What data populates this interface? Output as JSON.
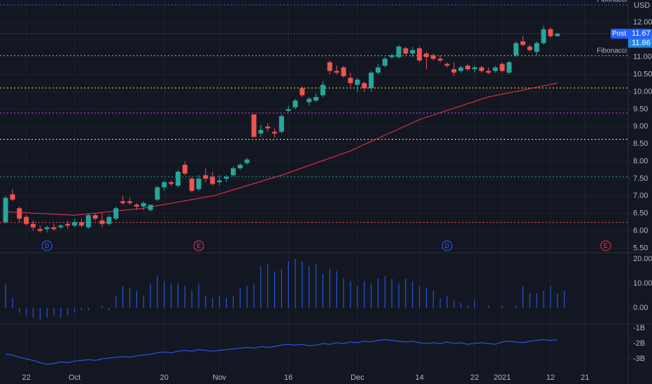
{
  "chart_data": [
    {
      "type": "candlestick",
      "currency": "USD",
      "categories": [
        null,
        null,
        null,
        "22",
        null,
        null,
        null,
        null,
        null,
        null,
        "Oct",
        null,
        null,
        null,
        null,
        null,
        null,
        null,
        null,
        null,
        null,
        null,
        null,
        "20",
        null,
        null,
        null,
        null,
        null,
        null,
        null,
        "Nov",
        null,
        null,
        null,
        null,
        null,
        null,
        null,
        null,
        null,
        "16",
        null,
        null,
        null,
        null,
        null,
        null,
        null,
        null,
        null,
        "Dec",
        null,
        null,
        null,
        null,
        null,
        null,
        null,
        null,
        "14",
        null,
        null,
        null,
        null,
        null,
        null,
        null,
        "22",
        null,
        null,
        null,
        "2021",
        null,
        null,
        null,
        null,
        null,
        null,
        "12",
        null,
        null,
        null,
        null,
        "21",
        null,
        null,
        null
      ],
      "open": [
        6.25,
        7.05,
        6.65,
        6.4,
        6.2,
        6.05,
        6.05,
        6.1,
        6.1,
        6.2,
        6.15,
        6.25,
        6.1,
        6.45,
        6.3,
        6.2,
        6.35,
        6.85,
        6.85,
        6.75,
        6.7,
        6.6,
        6.9,
        7.25,
        7.4,
        7.3,
        7.9,
        7.5,
        7.2,
        7.6,
        7.55,
        7.4,
        7.5,
        7.6,
        7.8,
        7.95,
        9.35,
        8.8,
        9.0,
        8.85,
        8.85,
        9.45,
        9.55,
        10.1,
        9.7,
        9.75,
        9.9,
        10.85,
        10.6,
        10.7,
        10.4,
        10.2,
        10.25,
        10.1,
        10.55,
        10.75,
        11.0,
        11.0,
        11.25,
        11.1,
        11.25,
        11.1,
        11.05,
        10.95,
        10.8,
        10.65,
        10.6,
        10.75,
        10.65,
        10.7,
        10.6,
        10.6,
        10.8,
        10.55,
        11.05,
        11.45,
        11.3,
        11.15,
        11.4,
        11.8,
        11.6,
        null,
        null,
        null,
        null,
        null,
        null,
        null
      ],
      "high": [
        7.0,
        7.2,
        6.7,
        6.45,
        6.3,
        6.15,
        6.15,
        6.2,
        6.2,
        6.3,
        6.35,
        6.35,
        6.5,
        6.5,
        6.5,
        6.45,
        6.7,
        7.0,
        6.95,
        6.8,
        6.85,
        6.75,
        7.3,
        7.45,
        7.45,
        7.75,
        8.0,
        7.55,
        7.6,
        7.8,
        7.7,
        7.6,
        7.6,
        7.85,
        7.95,
        8.1,
        9.35,
        9.05,
        9.1,
        8.95,
        9.35,
        9.6,
        9.8,
        10.15,
        9.85,
        9.95,
        10.3,
        10.9,
        10.75,
        10.75,
        10.55,
        10.4,
        10.3,
        10.6,
        10.8,
        11.0,
        11.1,
        11.35,
        11.3,
        11.3,
        11.3,
        11.15,
        11.1,
        11.05,
        10.85,
        10.85,
        10.75,
        10.8,
        10.75,
        10.75,
        10.7,
        10.75,
        10.85,
        10.9,
        11.45,
        11.6,
        11.35,
        11.45,
        11.9,
        11.85,
        11.7,
        null,
        null,
        null,
        null,
        null,
        null,
        null
      ],
      "low": [
        6.2,
        6.85,
        6.25,
        6.15,
        6.0,
        5.95,
        5.95,
        6.0,
        6.05,
        6.05,
        6.1,
        6.1,
        6.05,
        6.3,
        6.1,
        6.15,
        6.3,
        6.75,
        6.75,
        6.6,
        6.6,
        6.55,
        6.85,
        7.15,
        7.3,
        7.25,
        7.6,
        7.1,
        7.15,
        7.4,
        7.3,
        7.3,
        7.4,
        7.55,
        7.75,
        7.9,
        8.7,
        8.7,
        8.85,
        8.7,
        8.8,
        9.4,
        9.5,
        9.85,
        9.6,
        9.7,
        9.85,
        10.5,
        10.5,
        10.4,
        10.15,
        10.0,
        10.0,
        10.0,
        10.5,
        10.7,
        10.95,
        10.95,
        11.05,
        11.0,
        10.85,
        10.65,
        10.9,
        10.85,
        10.7,
        10.45,
        10.55,
        10.6,
        10.55,
        10.55,
        10.5,
        10.55,
        10.55,
        10.5,
        11.0,
        11.3,
        11.15,
        11.05,
        11.35,
        11.55,
        11.6,
        null,
        null,
        null,
        null,
        null,
        null,
        null
      ],
      "close": [
        6.95,
        6.9,
        6.35,
        6.2,
        6.1,
        6.0,
        6.1,
        6.05,
        6.15,
        6.15,
        6.25,
        6.15,
        6.45,
        6.35,
        6.2,
        6.4,
        6.65,
        6.8,
        6.8,
        6.7,
        6.8,
        6.75,
        7.25,
        7.4,
        7.35,
        7.7,
        7.65,
        7.15,
        7.5,
        7.5,
        7.35,
        7.45,
        7.55,
        7.8,
        7.9,
        8.05,
        8.7,
        8.9,
        8.95,
        8.8,
        9.3,
        9.5,
        9.75,
        9.9,
        9.8,
        9.85,
        10.2,
        10.6,
        10.55,
        10.45,
        10.25,
        10.35,
        10.1,
        10.55,
        10.7,
        10.95,
        11.05,
        11.3,
        11.1,
        11.2,
        10.9,
        11.0,
        10.95,
        10.9,
        10.75,
        10.55,
        10.7,
        10.65,
        10.7,
        10.6,
        10.55,
        10.7,
        10.6,
        10.85,
        11.4,
        11.35,
        11.2,
        11.4,
        11.8,
        11.6,
        11.67,
        null,
        null,
        null,
        null,
        null,
        null,
        null
      ],
      "up_color": "#26a69a",
      "down_color": "#ef5350",
      "overlay": {
        "color": "#f23645",
        "values": [
          6.55,
          6.54,
          6.53,
          6.52,
          6.51,
          6.5,
          6.49,
          6.48,
          6.47,
          6.46,
          6.45,
          6.47,
          6.49,
          6.51,
          6.53,
          6.55,
          6.57,
          6.59,
          6.61,
          6.63,
          6.65,
          6.69,
          6.72,
          6.76,
          6.79,
          6.83,
          6.86,
          6.9,
          6.93,
          6.97,
          7.0,
          7.06,
          7.12,
          7.18,
          7.24,
          7.3,
          7.36,
          7.42,
          7.48,
          7.54,
          7.6,
          7.67,
          7.74,
          7.81,
          7.88,
          7.95,
          8.02,
          8.09,
          8.16,
          8.23,
          8.3,
          8.39,
          8.48,
          8.57,
          8.66,
          8.75,
          8.84,
          8.93,
          9.02,
          9.11,
          9.2,
          9.27,
          9.33,
          9.4,
          9.46,
          9.53,
          9.59,
          9.66,
          9.72,
          9.79,
          9.85,
          9.89,
          9.93,
          9.97,
          10.01,
          10.05,
          10.09,
          10.13,
          10.17,
          10.21,
          10.25,
          null,
          null,
          null,
          null,
          null,
          null,
          null
        ]
      },
      "levels": [
        {
          "value": 12.5,
          "color": "#2962ff",
          "label": "Fibonacci"
        },
        {
          "value": 11.04,
          "color": "#ff9800",
          "label": "Fibonacci"
        },
        {
          "value": 10.11,
          "color": "#ffeb3b"
        },
        {
          "value": 9.39,
          "color": "#e040fb"
        },
        {
          "value": 8.63,
          "color": "#fff59d"
        },
        {
          "value": 7.56,
          "color": "#26a69a"
        },
        {
          "value": 6.24,
          "color": "#ef5350"
        }
      ],
      "last_price": 11.67,
      "post_label": "Post",
      "post_price": 11.66,
      "events": [
        {
          "label": "D",
          "index": 6,
          "color": "#2962ff"
        },
        {
          "label": "E",
          "index": 28,
          "color": "#f23645"
        },
        {
          "label": "D",
          "index": 64,
          "color": "#2962ff"
        },
        {
          "label": "E",
          "index": 87,
          "color": "#f23645"
        }
      ],
      "ylim": [
        5.37,
        12.64
      ],
      "yticks": [
        {
          "value": 5.5,
          "label": "5.50"
        },
        {
          "value": 6,
          "label": "6.00"
        },
        {
          "value": 6.5,
          "label": "6.50"
        },
        {
          "value": 7,
          "label": "7.00"
        },
        {
          "value": 7.5,
          "label": "7.50"
        },
        {
          "value": 8,
          "label": "8.00"
        },
        {
          "value": 8.5,
          "label": "8.50"
        },
        {
          "value": 9,
          "label": "9.00"
        },
        {
          "value": 9.5,
          "label": "9.50"
        },
        {
          "value": 10,
          "label": "10.00"
        },
        {
          "value": 10.5,
          "label": "10.50"
        },
        {
          "value": 11,
          "label": "11.00"
        },
        {
          "value": 11.5,
          "label": "11.50"
        },
        {
          "value": 12,
          "label": "12.00"
        }
      ],
      "grid": true
    },
    {
      "type": "bar",
      "color": "#2962ff",
      "values": [
        10,
        4,
        -2,
        -3,
        -4,
        -5,
        -4,
        -3,
        -4,
        -3,
        -2,
        -1,
        -1,
        0,
        1,
        -1,
        5,
        9,
        8,
        7,
        5,
        10,
        13,
        11,
        10,
        10,
        9,
        7,
        10,
        5,
        4,
        5,
        4,
        5,
        8,
        9,
        10,
        17,
        18,
        15,
        16,
        19,
        20,
        19,
        17,
        18,
        14,
        16,
        15,
        12,
        11,
        9,
        11,
        10,
        12,
        13,
        12,
        10,
        12,
        11,
        9,
        8,
        7,
        4,
        5,
        3,
        2,
        1,
        3,
        0,
        1,
        0,
        1,
        0,
        1,
        9,
        6,
        6,
        7,
        9,
        6,
        7,
        null,
        null,
        null,
        null,
        null,
        null,
        null
      ],
      "ylim": [
        -6,
        21.7
      ],
      "yticks": [
        {
          "value": 0,
          "label": "0.00"
        },
        {
          "value": 10,
          "label": "10.00"
        },
        {
          "value": 20,
          "label": "20.00"
        }
      ]
    },
    {
      "type": "line",
      "color": "#2962ff",
      "values": [
        -2700000000,
        -2750000000,
        -2900000000,
        -3000000000,
        -3100000000,
        -3250000000,
        -3350000000,
        -3300000000,
        -3200000000,
        -3250000000,
        -3150000000,
        -3100000000,
        -3050000000,
        -3100000000,
        -3000000000,
        -2950000000,
        -2900000000,
        -2850000000,
        -2900000000,
        -2800000000,
        -2750000000,
        -2700000000,
        -2600000000,
        -2550000000,
        -2600000000,
        -2500000000,
        -2450000000,
        -2500000000,
        -2400000000,
        -2450000000,
        -2500000000,
        -2450000000,
        -2400000000,
        -2350000000,
        -2300000000,
        -2250000000,
        -2300000000,
        -2200000000,
        -2250000000,
        -2200000000,
        -2100000000,
        -2050000000,
        -2100000000,
        -2050000000,
        -2150000000,
        -2100000000,
        -2000000000,
        -2050000000,
        -1950000000,
        -2000000000,
        -1900000000,
        -1950000000,
        -1850000000,
        -1900000000,
        -1800000000,
        -1750000000,
        -1800000000,
        -1850000000,
        -1900000000,
        -1850000000,
        -1950000000,
        -2000000000,
        -1950000000,
        -2000000000,
        -1900000000,
        -2000000000,
        -1950000000,
        -2050000000,
        -2000000000,
        -1950000000,
        -2000000000,
        -2050000000,
        -1900000000,
        -1850000000,
        -1900000000,
        -1950000000,
        -1850000000,
        -1800000000,
        -1750000000,
        -1800000000,
        -1750000000,
        null,
        null,
        null,
        null,
        null,
        null,
        null
      ],
      "ylim": [
        -3820000000,
        -770000000
      ],
      "yticks": [
        {
          "value": -1000000000,
          "label": "-1B"
        },
        {
          "value": -2000000000,
          "label": "-2B"
        },
        {
          "value": -3000000000,
          "label": "-3B"
        }
      ]
    }
  ]
}
